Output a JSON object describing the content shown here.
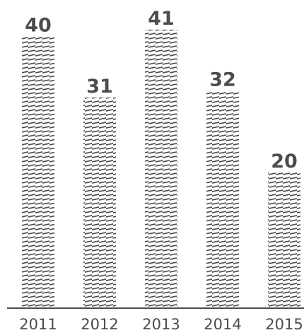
{
  "chart_data": {
    "type": "bar",
    "categories": [
      "2011",
      "2012",
      "2013",
      "2014",
      "2015"
    ],
    "values": [
      40,
      31,
      41,
      32,
      20
    ],
    "value_labels": [
      "40",
      "31",
      "41",
      "32",
      "20"
    ],
    "title": "",
    "xlabel": "",
    "ylabel": "",
    "ylim": [
      0,
      41
    ],
    "grid": false,
    "legend": "none",
    "bar_fill": "hatched",
    "colors": {
      "hatch": "#4a4c4e",
      "axis": "#4a4c4e",
      "value_label": "#4a4c4e",
      "tick_label": "#4a4c4e",
      "background": "#ffffff"
    }
  }
}
